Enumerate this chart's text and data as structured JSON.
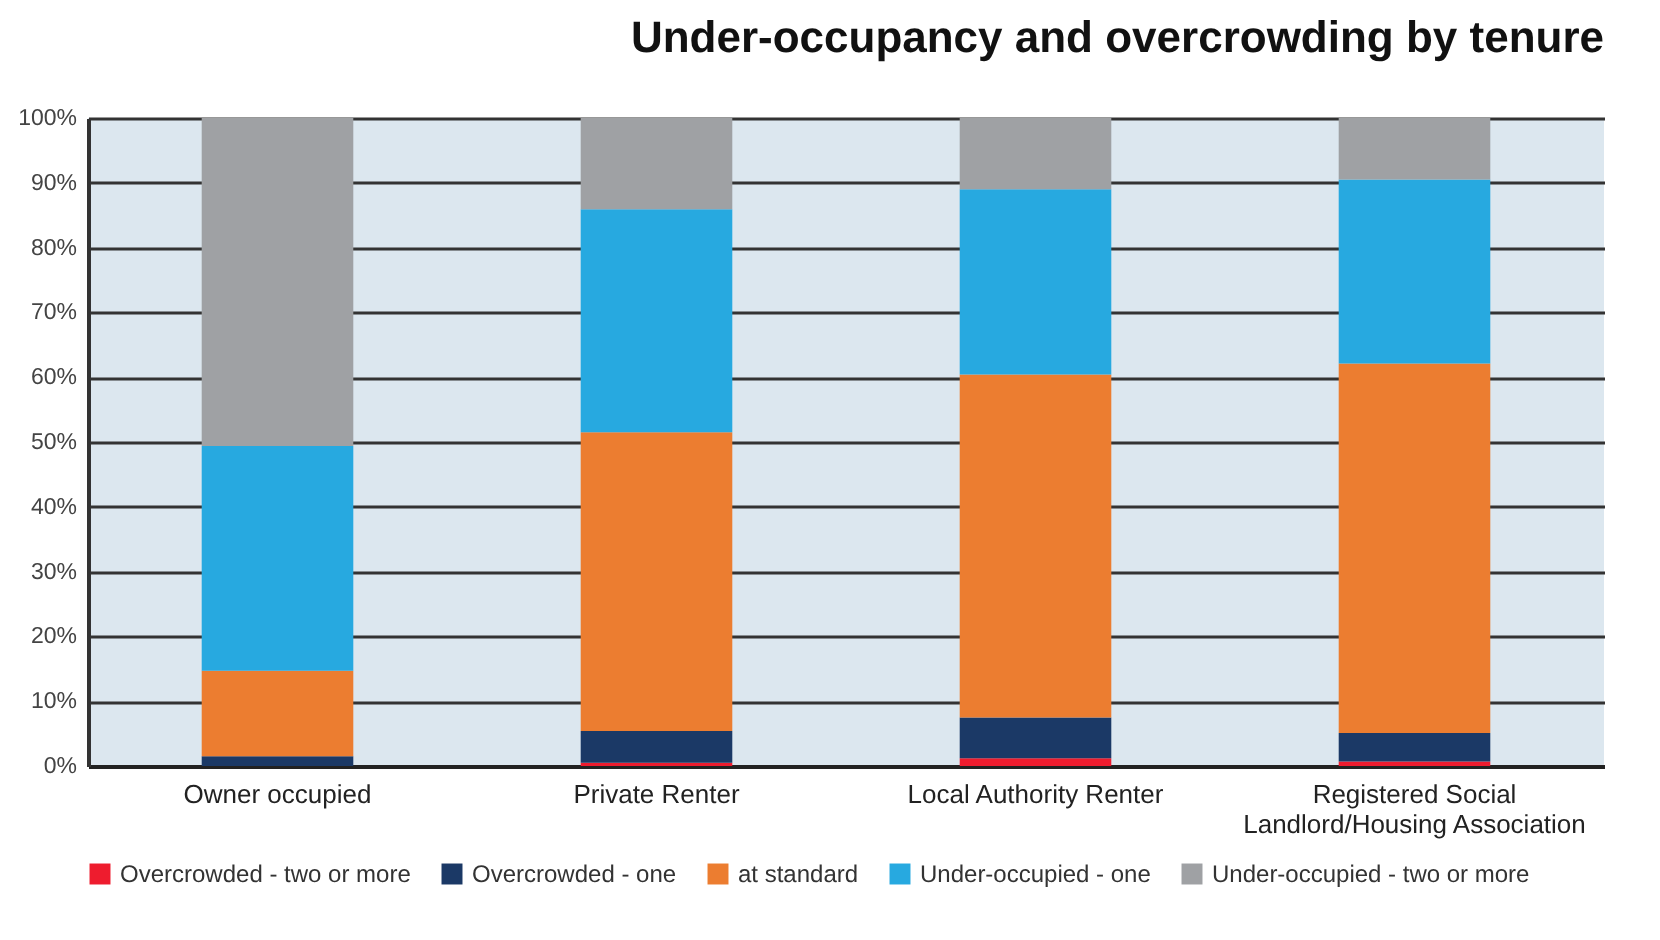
{
  "chart_data": {
    "type": "bar",
    "title": "Under-occupancy and overcrowding by tenure",
    "stacked": true,
    "categories": [
      "Owner occupied",
      "Private Renter",
      "Local Authority Renter",
      "Registered Social Landlord/Housing Association"
    ],
    "series": [
      {
        "name": "Overcrowded - two or more",
        "color": "#ee1c2e",
        "values": [
          0,
          0.5,
          1.2,
          0.7
        ]
      },
      {
        "name": "Overcrowded - one",
        "color": "#1b3966",
        "values": [
          1.5,
          4.9,
          6.3,
          4.4
        ]
      },
      {
        "name": "at standard",
        "color": "#ec7d30",
        "values": [
          13.2,
          46.1,
          52.9,
          57.0
        ]
      },
      {
        "name": "Under-occupied - one",
        "color": "#27a9e0",
        "values": [
          34.7,
          34.4,
          28.6,
          28.4
        ]
      },
      {
        "name": "Under-occupied - two or more",
        "color": "#9fa1a4",
        "values": [
          50.6,
          14.1,
          11.0,
          9.5
        ]
      }
    ],
    "ylim": [
      0,
      100
    ],
    "yticks": [
      {
        "value": 0,
        "label": "0%"
      },
      {
        "value": 10,
        "label": "10%"
      },
      {
        "value": 20,
        "label": "20%"
      },
      {
        "value": 30,
        "label": "30%"
      },
      {
        "value": 40,
        "label": "40%"
      },
      {
        "value": 50,
        "label": "50%"
      },
      {
        "value": 60,
        "label": "60%"
      },
      {
        "value": 70,
        "label": "70%"
      },
      {
        "value": 80,
        "label": "80%"
      },
      {
        "value": 90,
        "label": "90%"
      },
      {
        "value": 100,
        "label": "100%"
      }
    ],
    "grid": "y",
    "legend": "bottom"
  }
}
